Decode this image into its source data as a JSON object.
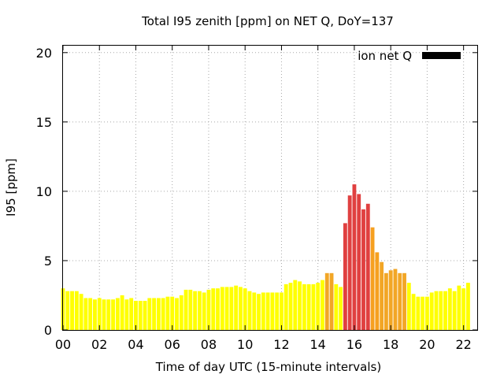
{
  "chart_data": {
    "type": "bar",
    "title": "Total I95 zenith [ppm] on NET Q, DoY=137",
    "xlabel": "Time of day UTC (15-minute intervals)",
    "ylabel": "I95 [ppm]",
    "legend": {
      "label": "ion net Q",
      "color": "#000000",
      "placement": "top-right"
    },
    "grid": true,
    "xlim": [
      0,
      22.75
    ],
    "ylim": [
      0,
      20.5
    ],
    "x_ticks": [
      0,
      2,
      4,
      6,
      8,
      10,
      12,
      14,
      16,
      18,
      20,
      22
    ],
    "x_tick_labels": [
      "00",
      "02",
      "04",
      "06",
      "08",
      "10",
      "12",
      "14",
      "16",
      "18",
      "20",
      "22"
    ],
    "y_ticks": [
      0,
      5,
      10,
      15,
      20
    ],
    "y_tick_labels": [
      "0",
      "5",
      "10",
      "15",
      "20"
    ],
    "interval_hours": 0.25,
    "color_scale": [
      {
        "min": 0,
        "color": "#ffff00"
      },
      {
        "min": 3.7,
        "color": "#f2a626"
      },
      {
        "min": 5.5,
        "color": "#f6a020"
      },
      {
        "min": 7.6,
        "color": "#e04040"
      }
    ],
    "values": [
      3.0,
      2.8,
      2.8,
      2.8,
      2.6,
      2.3,
      2.3,
      2.2,
      2.3,
      2.2,
      2.2,
      2.2,
      2.3,
      2.5,
      2.2,
      2.3,
      2.1,
      2.1,
      2.1,
      2.3,
      2.3,
      2.3,
      2.3,
      2.4,
      2.4,
      2.3,
      2.5,
      2.9,
      2.9,
      2.8,
      2.8,
      2.7,
      2.9,
      3.0,
      3.0,
      3.1,
      3.1,
      3.1,
      3.2,
      3.1,
      3.0,
      2.8,
      2.7,
      2.6,
      2.7,
      2.7,
      2.7,
      2.7,
      2.7,
      3.3,
      3.4,
      3.6,
      3.5,
      3.3,
      3.3,
      3.3,
      3.4,
      3.6,
      4.1,
      4.1,
      3.3,
      3.1,
      7.7,
      9.7,
      10.5,
      9.8,
      8.7,
      9.1,
      7.4,
      5.6,
      4.9,
      4.1,
      4.3,
      4.4,
      4.1,
      4.1,
      3.4,
      2.6,
      2.4,
      2.4,
      2.4,
      2.7,
      2.8,
      2.8,
      2.8,
      3.0,
      2.8,
      3.2,
      3.0,
      3.4
    ]
  }
}
